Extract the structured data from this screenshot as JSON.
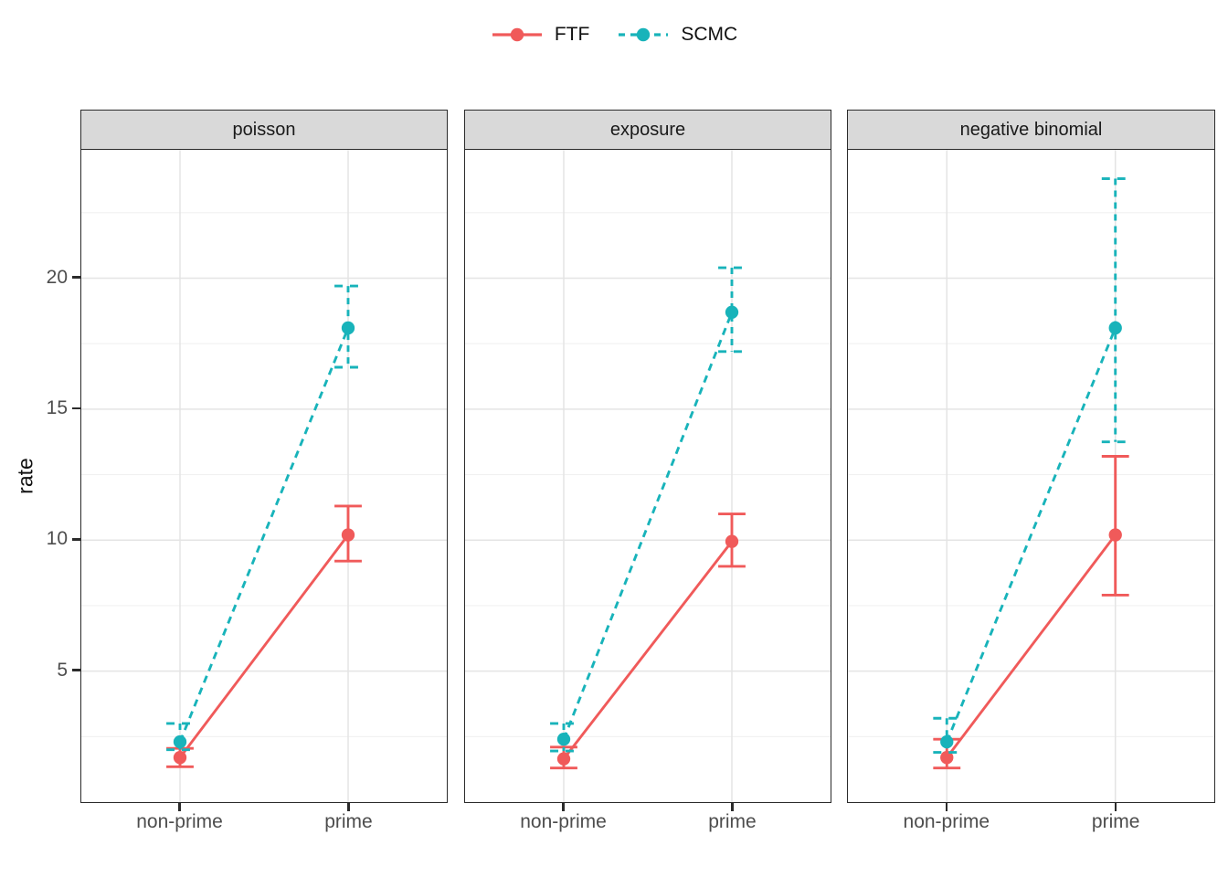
{
  "chart_data": {
    "type": "line",
    "title": "",
    "ylabel": "rate",
    "xlabel": "",
    "categories": [
      "non-prime",
      "prime"
    ],
    "y_ticks": [
      5,
      10,
      15,
      20
    ],
    "ylim": [
      0,
      24.9
    ],
    "grid": "on",
    "legend_position": "top-center",
    "series_styles": [
      {
        "name": "FTF",
        "color": "#f05a5a",
        "dash": "solid"
      },
      {
        "name": "SCMC",
        "color": "#18b3ba",
        "dash": "dashed"
      }
    ],
    "facets": [
      {
        "label": "poisson",
        "series": [
          {
            "name": "FTF",
            "values": [
              1.7,
              10.2
            ],
            "ci_low": [
              1.35,
              9.2
            ],
            "ci_high": [
              2.05,
              11.3
            ]
          },
          {
            "name": "SCMC",
            "values": [
              2.3,
              18.1
            ],
            "ci_low": [
              2.0,
              16.6
            ],
            "ci_high": [
              3.0,
              19.7
            ]
          }
        ]
      },
      {
        "label": "exposure",
        "series": [
          {
            "name": "FTF",
            "values": [
              1.65,
              9.95
            ],
            "ci_low": [
              1.3,
              9.0
            ],
            "ci_high": [
              2.1,
              11.0
            ]
          },
          {
            "name": "SCMC",
            "values": [
              2.4,
              18.7
            ],
            "ci_low": [
              1.95,
              17.2
            ],
            "ci_high": [
              3.0,
              20.4
            ]
          }
        ]
      },
      {
        "label": "negative binomial",
        "series": [
          {
            "name": "FTF",
            "values": [
              1.7,
              10.2
            ],
            "ci_low": [
              1.3,
              7.9
            ],
            "ci_high": [
              2.4,
              13.2
            ]
          },
          {
            "name": "SCMC",
            "values": [
              2.3,
              18.1
            ],
            "ci_low": [
              1.9,
              13.75
            ],
            "ci_high": [
              3.2,
              23.8
            ]
          }
        ]
      }
    ],
    "colors": {
      "strip_background": "#d9d9d9",
      "panel_border": "#2b2b2b",
      "grid_major": "#e4e4e4",
      "grid_minor": "#f1f1f1",
      "axis_text": "#4d4d4d"
    }
  }
}
